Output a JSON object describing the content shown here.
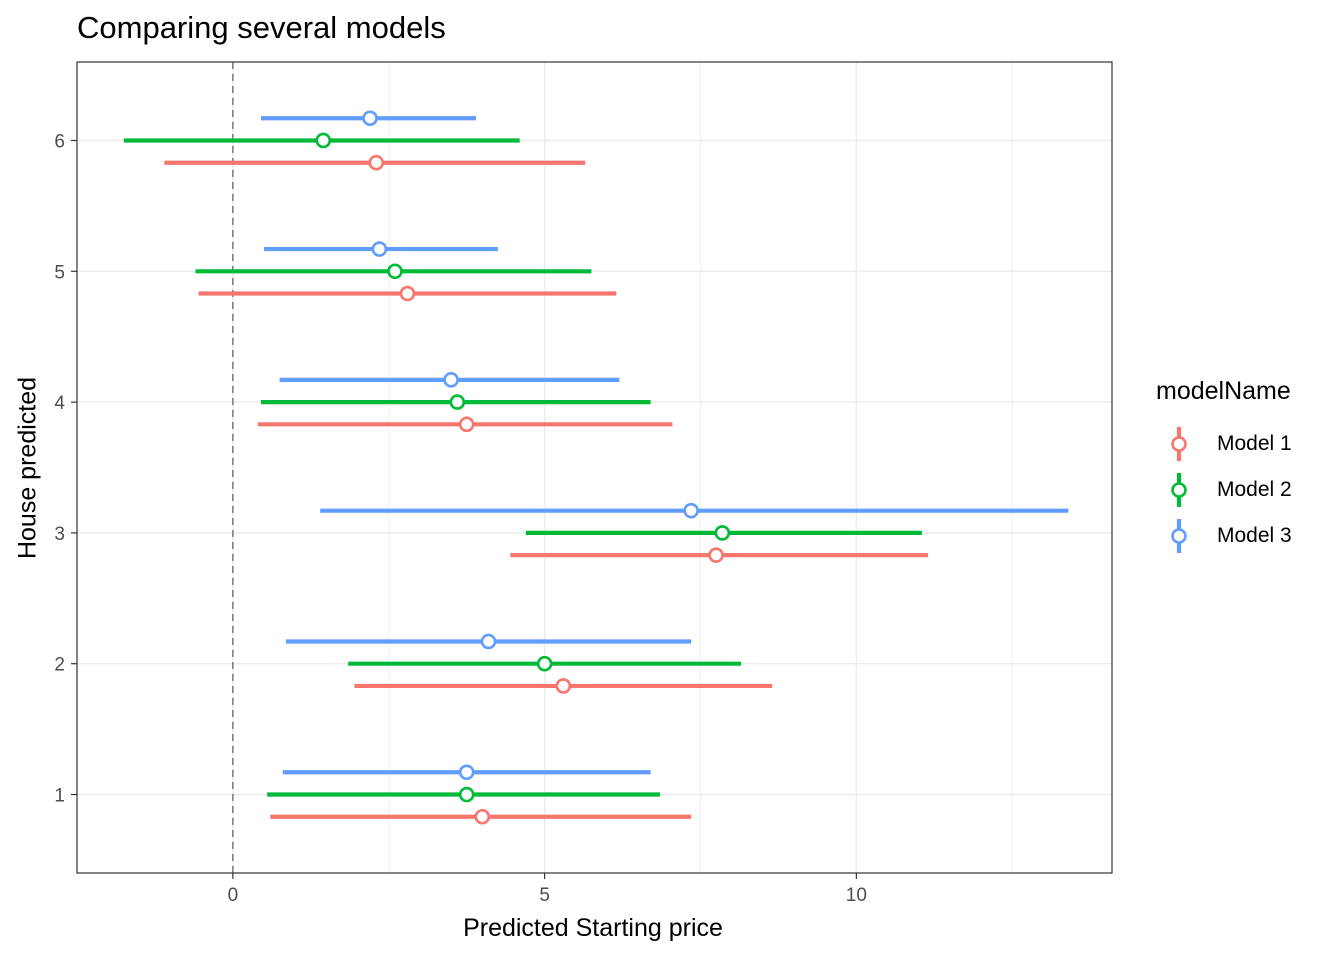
{
  "chart_data": {
    "type": "errorbar",
    "title": "Comparing several models",
    "xlabel": "Predicted Starting price",
    "ylabel": "House predicted",
    "xlim": [
      -2.5,
      14.1
    ],
    "ylim": [
      0.4,
      6.6
    ],
    "x_ticks": [
      0,
      5,
      10
    ],
    "y_ticks": [
      1,
      2,
      3,
      4,
      5,
      6
    ],
    "grid": true,
    "reference_line": {
      "x": 0,
      "style": "dashed"
    },
    "legend": {
      "title": "modelName",
      "position": "right"
    },
    "series": [
      {
        "name": "Model 1",
        "color": "#F8766D",
        "points": [
          {
            "house": 1,
            "estimate": 4.0,
            "low": 0.6,
            "high": 7.35
          },
          {
            "house": 2,
            "estimate": 5.3,
            "low": 1.95,
            "high": 8.65
          },
          {
            "house": 3,
            "estimate": 7.75,
            "low": 4.45,
            "high": 11.15
          },
          {
            "house": 4,
            "estimate": 3.75,
            "low": 0.4,
            "high": 7.05
          },
          {
            "house": 5,
            "estimate": 2.8,
            "low": -0.55,
            "high": 6.15
          },
          {
            "house": 6,
            "estimate": 2.3,
            "low": -1.1,
            "high": 5.65
          }
        ]
      },
      {
        "name": "Model 2",
        "color": "#00BA38",
        "points": [
          {
            "house": 1,
            "estimate": 3.75,
            "low": 0.55,
            "high": 6.85
          },
          {
            "house": 2,
            "estimate": 5.0,
            "low": 1.85,
            "high": 8.15
          },
          {
            "house": 3,
            "estimate": 7.85,
            "low": 4.7,
            "high": 11.05
          },
          {
            "house": 4,
            "estimate": 3.6,
            "low": 0.45,
            "high": 6.7
          },
          {
            "house": 5,
            "estimate": 2.6,
            "low": -0.6,
            "high": 5.75
          },
          {
            "house": 6,
            "estimate": 1.45,
            "low": -1.75,
            "high": 4.6
          }
        ]
      },
      {
        "name": "Model 3",
        "color": "#619CFF",
        "points": [
          {
            "house": 1,
            "estimate": 3.75,
            "low": 0.8,
            "high": 6.7
          },
          {
            "house": 2,
            "estimate": 4.1,
            "low": 0.85,
            "high": 7.35
          },
          {
            "house": 3,
            "estimate": 7.35,
            "low": 1.4,
            "high": 13.4
          },
          {
            "house": 4,
            "estimate": 3.5,
            "low": 0.75,
            "high": 6.2
          },
          {
            "house": 5,
            "estimate": 2.35,
            "low": 0.5,
            "high": 4.25
          },
          {
            "house": 6,
            "estimate": 2.2,
            "low": 0.45,
            "high": 3.9
          }
        ]
      }
    ]
  }
}
